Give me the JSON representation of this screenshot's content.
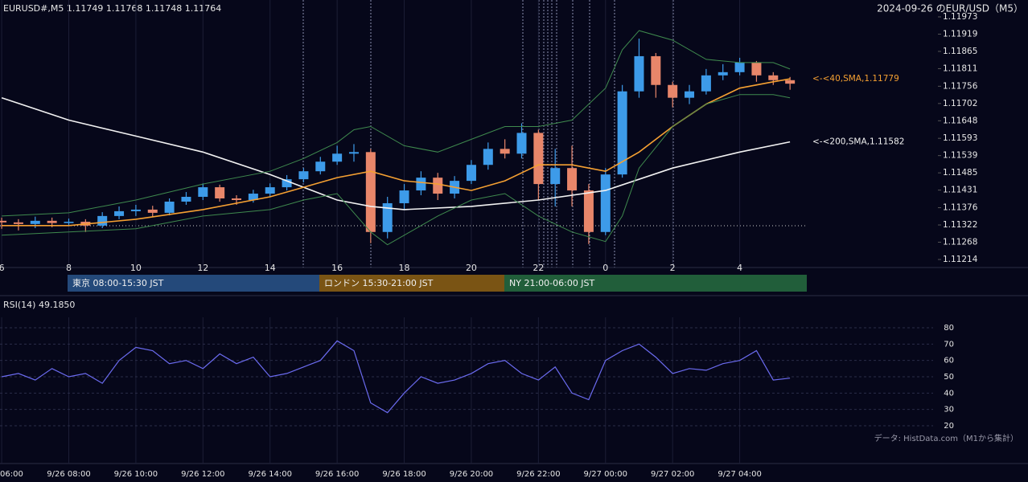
{
  "chart_data": {
    "type": "candlestick",
    "header": "EURUSD#,M5 1.11749 1.11768 1.11748 1.11764",
    "title": "2024-09-26 のEUR/USD（M5）",
    "xlim": [
      5.95,
      30
    ],
    "xticks": [
      6,
      8,
      10,
      12,
      14,
      16,
      18,
      20,
      22,
      {
        "value": 24,
        "label": "0"
      },
      {
        "value": 26,
        "label": "2"
      },
      {
        "value": 28,
        "label": "4"
      }
    ],
    "time_ticks": [
      {
        "value": 6,
        "label": "06:00"
      },
      {
        "value": 8,
        "label": "9/26 08:00"
      },
      {
        "value": 10,
        "label": "9/26 10:00"
      },
      {
        "value": 12,
        "label": "9/26 12:00"
      },
      {
        "value": 14,
        "label": "9/26 14:00"
      },
      {
        "value": 16,
        "label": "9/26 16:00"
      },
      {
        "value": 18,
        "label": "9/26 18:00"
      },
      {
        "value": 20,
        "label": "9/26 20:00"
      },
      {
        "value": 22,
        "label": "9/26 22:00"
      },
      {
        "value": 24,
        "label": "9/27 00:00"
      },
      {
        "value": 26,
        "label": "9/27 02:00"
      },
      {
        "value": 28,
        "label": "9/27 04:00"
      }
    ],
    "ylim": [
      1.11214,
      1.11973
    ],
    "yticks": [
      1.11214,
      1.11268,
      1.11322,
      1.11376,
      1.11431,
      1.11485,
      1.11539,
      1.11593,
      1.11648,
      1.11702,
      1.11756,
      1.11811,
      1.11865,
      1.11919,
      1.11973
    ],
    "up_color": "#3d9be9",
    "down_color": "#e8866a",
    "x": [
      6,
      6.5,
      7,
      7.5,
      8,
      8.5,
      9,
      9.5,
      10,
      10.5,
      11,
      11.5,
      12,
      12.5,
      13,
      13.5,
      14,
      14.5,
      15,
      15.5,
      16,
      16.5,
      17,
      17.5,
      18,
      18.5,
      19,
      19.5,
      20,
      20.5,
      21,
      21.5,
      22,
      22.5,
      23,
      23.5,
      24,
      24.5,
      25,
      25.5,
      26,
      26.5,
      27,
      27.5,
      28,
      28.5,
      29,
      29.5
    ],
    "open": [
      1.11335,
      1.1133,
      1.11325,
      1.11335,
      1.11328,
      1.11332,
      1.1132,
      1.1135,
      1.11365,
      1.1137,
      1.1136,
      1.11395,
      1.1141,
      1.1144,
      1.11405,
      1.114,
      1.1142,
      1.1144,
      1.11465,
      1.1149,
      1.1152,
      1.11545,
      1.1155,
      1.113,
      1.1139,
      1.1143,
      1.1147,
      1.1142,
      1.1146,
      1.1151,
      1.1156,
      1.11545,
      1.1161,
      1.1145,
      1.115,
      1.1143,
      1.113,
      1.1148,
      1.1174,
      1.1185,
      1.1176,
      1.1172,
      1.1174,
      1.1179,
      1.118,
      1.1183,
      1.1179,
      1.11775
    ],
    "high": [
      1.11345,
      1.1134,
      1.11348,
      1.11345,
      1.11342,
      1.1134,
      1.11362,
      1.1138,
      1.11385,
      1.11382,
      1.11405,
      1.11425,
      1.11452,
      1.11448,
      1.11415,
      1.11432,
      1.11452,
      1.11478,
      1.115,
      1.11535,
      1.1157,
      1.11575,
      1.1156,
      1.1141,
      1.1145,
      1.1149,
      1.11485,
      1.11475,
      1.11525,
      1.1158,
      1.1159,
      1.1164,
      1.1162,
      1.1156,
      1.1157,
      1.1145,
      1.115,
      1.1176,
      1.11905,
      1.1186,
      1.1177,
      1.1176,
      1.1181,
      1.11825,
      1.11845,
      1.11835,
      1.118,
      1.11785
    ],
    "low": [
      1.1131,
      1.11305,
      1.11312,
      1.11315,
      1.11318,
      1.113,
      1.11312,
      1.1134,
      1.1135,
      1.11348,
      1.11352,
      1.11385,
      1.114,
      1.11395,
      1.11385,
      1.11392,
      1.1141,
      1.1143,
      1.11455,
      1.1148,
      1.1151,
      1.1152,
      1.11265,
      1.1128,
      1.1137,
      1.11415,
      1.114,
      1.11405,
      1.1145,
      1.11495,
      1.1153,
      1.1153,
      1.114,
      1.1138,
      1.1138,
      1.11262,
      1.1129,
      1.1147,
      1.1172,
      1.1172,
      1.1169,
      1.117,
      1.1173,
      1.11775,
      1.1179,
      1.1177,
      1.1176,
      1.11745
    ],
    "close": [
      1.1133,
      1.11325,
      1.11335,
      1.11328,
      1.11332,
      1.1132,
      1.1135,
      1.11365,
      1.1137,
      1.1136,
      1.11395,
      1.1141,
      1.1144,
      1.11405,
      1.114,
      1.1142,
      1.1144,
      1.11465,
      1.1149,
      1.1152,
      1.11545,
      1.1155,
      1.113,
      1.1139,
      1.1143,
      1.1147,
      1.1142,
      1.1146,
      1.1151,
      1.1156,
      1.11545,
      1.1161,
      1.1145,
      1.115,
      1.1143,
      1.113,
      1.1148,
      1.1174,
      1.1185,
      1.1176,
      1.1172,
      1.1174,
      1.1179,
      1.118,
      1.1183,
      1.1179,
      1.11775,
      1.11764
    ],
    "lines": [
      {
        "label": "<-<200,SMA,1.11582",
        "color": "#f2f2f2",
        "x": [
          6,
          8,
          10,
          12,
          14,
          16,
          17,
          18,
          20,
          22,
          24,
          26,
          28,
          29.5
        ],
        "values": [
          1.1172,
          1.1165,
          1.116,
          1.1155,
          1.1148,
          1.114,
          1.1138,
          1.1137,
          1.1138,
          1.114,
          1.1143,
          1.115,
          1.1155,
          1.11582
        ]
      },
      {
        "label": "<-<40,SMA,1.11779",
        "color": "#f5a032",
        "x": [
          6,
          8,
          10,
          12,
          14,
          15,
          16,
          17,
          18,
          19,
          20,
          21,
          22,
          23,
          23.5,
          24,
          25,
          26,
          27,
          28,
          29,
          29.5
        ],
        "values": [
          1.1132,
          1.1132,
          1.1134,
          1.1137,
          1.1141,
          1.1144,
          1.1147,
          1.1149,
          1.1146,
          1.1145,
          1.1143,
          1.1146,
          1.1151,
          1.1151,
          1.115,
          1.1149,
          1.1155,
          1.1163,
          1.117,
          1.1175,
          1.1177,
          1.11779
        ]
      },
      {
        "color": "#3f8a4e",
        "x": [
          6,
          8,
          10,
          12,
          14,
          15,
          16,
          16.5,
          17,
          18,
          19,
          20,
          21,
          22,
          23,
          24,
          24.5,
          25,
          26,
          27,
          28,
          29,
          29.5
        ],
        "values": [
          1.1135,
          1.1136,
          1.114,
          1.1145,
          1.1149,
          1.1153,
          1.1158,
          1.1162,
          1.1163,
          1.1157,
          1.1155,
          1.1159,
          1.1163,
          1.1163,
          1.1165,
          1.1175,
          1.1187,
          1.1193,
          1.119,
          1.1184,
          1.1183,
          1.1183,
          1.1181
        ]
      },
      {
        "color": "#3f8a4e",
        "x": [
          6,
          8,
          10,
          12,
          14,
          15,
          16,
          17,
          17.5,
          18,
          19,
          20,
          21,
          22,
          23,
          24,
          24.5,
          25,
          26,
          27,
          28,
          29,
          29.5
        ],
        "values": [
          1.1129,
          1.113,
          1.1131,
          1.1135,
          1.1137,
          1.114,
          1.1142,
          1.113,
          1.1126,
          1.1129,
          1.1135,
          1.114,
          1.1142,
          1.1135,
          1.113,
          1.1127,
          1.1135,
          1.115,
          1.1163,
          1.117,
          1.1173,
          1.1173,
          1.1172
        ]
      }
    ],
    "sessions": [
      "東京 08:00-15:30 JST",
      "ロンドン 15:30-21:00 JST",
      "NY 21:00-06:00 JST"
    ],
    "rsi": {
      "label": "RSI(14) 49.1850",
      "color": "#6b6bf0",
      "ylim": [
        20,
        80
      ],
      "yticks": [
        20,
        30,
        40,
        50,
        60,
        70,
        80
      ],
      "values": [
        50,
        52,
        48,
        55,
        50,
        52,
        46,
        60,
        68,
        66,
        58,
        60,
        55,
        64,
        58,
        62,
        50,
        52,
        56,
        60,
        72,
        66,
        34,
        28,
        40,
        50,
        46,
        48,
        52,
        58,
        60,
        52,
        48,
        56,
        40,
        36,
        60,
        66,
        70,
        62,
        52,
        55,
        54,
        58,
        60,
        66,
        48,
        49.185
      ]
    },
    "source": "データ: HistData.com（M1から集計）"
  }
}
